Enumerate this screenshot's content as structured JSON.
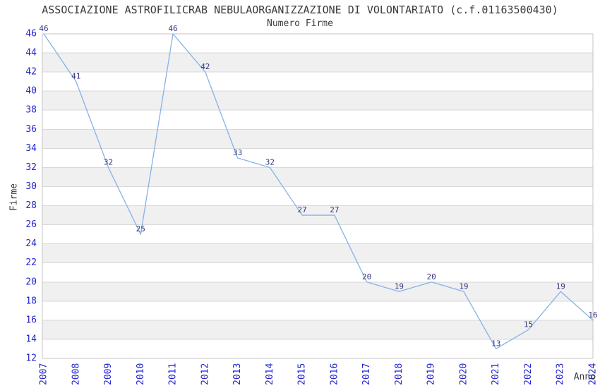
{
  "header": {
    "title": "ASSOCIAZIONE ASTROFILICRAB NEBULAORGANIZZAZIONE DI VOLONTARIATO (c.f.01163500430)",
    "subtitle": "Numero Firme"
  },
  "chart_data": {
    "type": "line",
    "title": "ASSOCIAZIONE ASTROFILICRAB NEBULAORGANIZZAZIONE DI VOLONTARIATO (c.f.01163500430)",
    "subtitle": "Numero Firme",
    "xlabel": "Anno",
    "ylabel": "Firme",
    "categories": [
      "2007",
      "2008",
      "2009",
      "2010",
      "2011",
      "2012",
      "2013",
      "2014",
      "2015",
      "2016",
      "2017",
      "2018",
      "2019",
      "2020",
      "2021",
      "2022",
      "2023",
      "2024"
    ],
    "values": [
      46,
      41,
      32,
      25,
      46,
      42,
      33,
      32,
      27,
      27,
      20,
      19,
      20,
      19,
      13,
      15,
      19,
      16
    ],
    "ylim": [
      12,
      46
    ],
    "ytick_step": 2,
    "grid": true,
    "legend_position": "none",
    "point_labels_visible": true,
    "colors": {
      "line": "#86b2e6",
      "tick_label": "#2323cc",
      "point_label": "#32327e",
      "band_alt": "#f0f0f0",
      "band_base": "#ffffff",
      "grid_line": "#d9d9d9",
      "plot_border": "#c6c6c6",
      "text": "#3a3a3a"
    }
  }
}
